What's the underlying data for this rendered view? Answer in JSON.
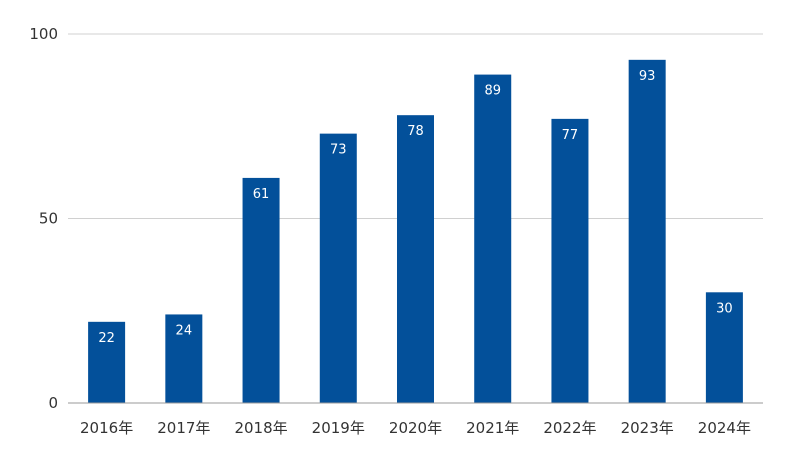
{
  "chart_data": {
    "type": "bar",
    "title": "",
    "xlabel": "",
    "ylabel": "",
    "categories": [
      "2016年",
      "2017年",
      "2018年",
      "2019年",
      "2020年",
      "2021年",
      "2022年",
      "2023年",
      "2024年"
    ],
    "values": [
      22,
      24,
      61,
      73,
      78,
      89,
      77,
      93,
      30
    ],
    "ylim": [
      0,
      100
    ],
    "yticks": [
      0,
      50,
      100
    ],
    "grid": true,
    "data_labels": true,
    "legend": "none",
    "bar_color": "#03509a"
  }
}
